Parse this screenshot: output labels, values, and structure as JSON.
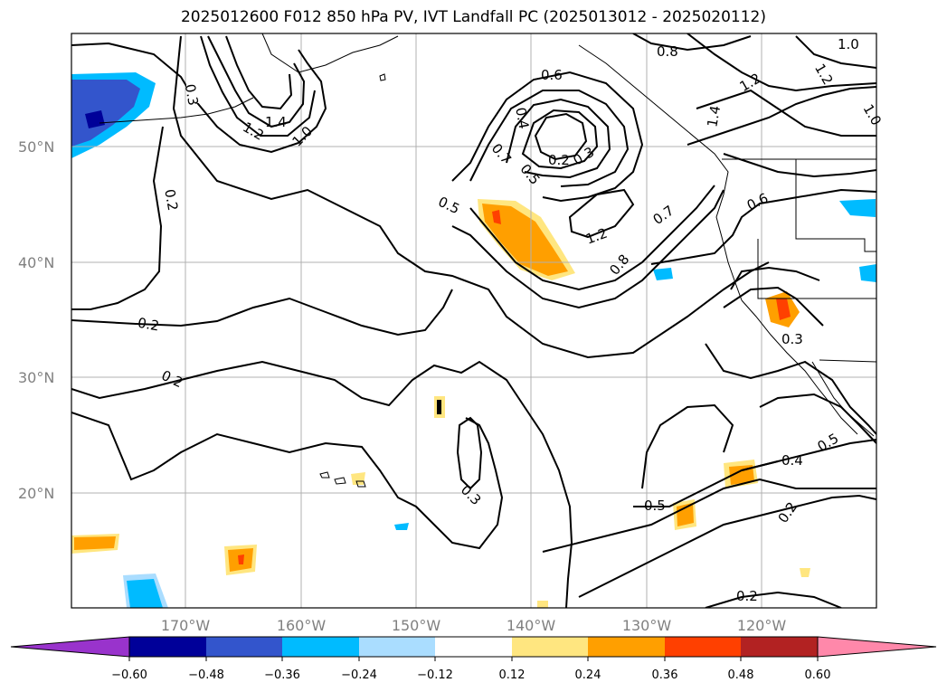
{
  "title": "2025012600 F012 850 hPa PV, IVT Landfall PC (2025013012 - 2025020112)",
  "latitude_labels": [
    "50°N",
    "40°N",
    "30°N",
    "20°N"
  ],
  "longitude_labels": [
    "170°W",
    "160°W",
    "150°W",
    "140°W",
    "130°W",
    "120°W"
  ],
  "contour_labels": [
    "0.3",
    "0.2",
    "1.2",
    "1.4",
    "1.0",
    "0.6",
    "0.4",
    "0.7",
    "0.5",
    "0.2",
    "0.3",
    "1.2",
    "0.8",
    "0.7",
    "0.6",
    "0.8",
    "1.0",
    "1.2",
    "1.2",
    "1.4",
    "1.0",
    "0.2",
    "0.2",
    "0.5",
    "0.3",
    "0.3",
    "0.5",
    "0.4",
    "0.5",
    "0.2",
    "0.2"
  ],
  "colorbar": {
    "tick_labels": [
      "−0.60",
      "−0.48",
      "−0.36",
      "−0.24",
      "−0.12",
      "0.12",
      "0.24",
      "0.36",
      "0.48",
      "0.60"
    ],
    "colors": [
      "#9933cc",
      "#000099",
      "#3355cc",
      "#00bbff",
      "#aaddff",
      "#ffffff",
      "#ffe680",
      "#ff9f00",
      "#ff4000",
      "#b22222",
      "#ff88aa"
    ]
  }
}
